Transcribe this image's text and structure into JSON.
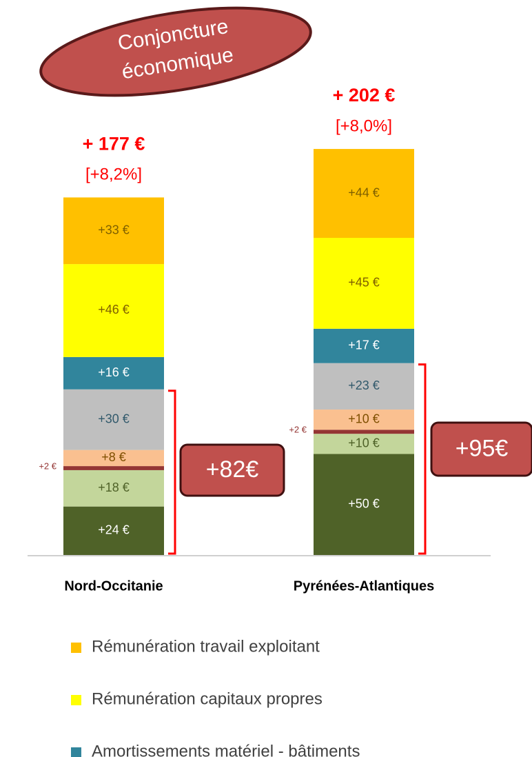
{
  "chart_data": {
    "type": "stacked_bar",
    "title": [
      "Conjoncture",
      "économique"
    ],
    "categories": [
      "Nord-Occitanie",
      "Pyrénées-Atlantiques"
    ],
    "totals": [
      "+ 177 €",
      "+ 202 €"
    ],
    "percent_labels": [
      "[+8,2%]",
      "[+8,0%]"
    ],
    "bracket_labels": [
      "+82€",
      "+95€"
    ],
    "series": [
      {
        "color": "#4f6228",
        "label_color": "#ffffff",
        "values": [
          24,
          50
        ],
        "value_labels": [
          "+24 €",
          "+50 €"
        ]
      },
      {
        "color": "#c3d69b",
        "label_color": "#4f6228",
        "values": [
          18,
          10
        ],
        "value_labels": [
          "+18 €",
          "+10 €"
        ]
      },
      {
        "color": "#943634",
        "label_color": "#943634",
        "values": [
          2,
          2
        ],
        "value_labels": [
          "+2 €",
          "+2 €"
        ]
      },
      {
        "color": "#fac090",
        "label_color": "#7f4f00",
        "values": [
          8,
          10
        ],
        "value_labels": [
          "+8 €",
          "+10 €"
        ]
      },
      {
        "color": "#bfbfbf",
        "label_color": "#31596b",
        "values": [
          30,
          23
        ],
        "value_labels": [
          "+30 €",
          "+23 €"
        ]
      },
      {
        "name": "Amortissements matériel - bâtiments",
        "color": "#31859c",
        "label_color": "#ffffff",
        "values": [
          16,
          17
        ],
        "value_labels": [
          "+16 €",
          "+17 €"
        ]
      },
      {
        "name": "Rémunération capitaux propres",
        "color": "#ffff00",
        "label_color": "#7f6000",
        "values": [
          46,
          45
        ],
        "value_labels": [
          "+46 €",
          "+45 €"
        ]
      },
      {
        "name": "Rémunération travail exploitant",
        "color": "#ffc000",
        "label_color": "#7f6000",
        "values": [
          33,
          44
        ],
        "value_labels": [
          "+33 €",
          "+44 €"
        ]
      }
    ]
  }
}
